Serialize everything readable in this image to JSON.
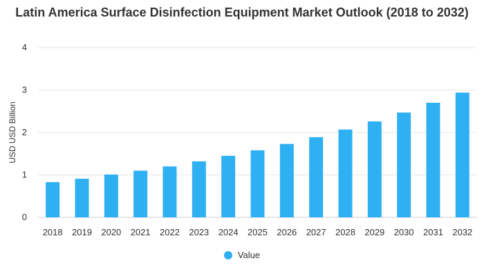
{
  "chart_data": {
    "type": "bar",
    "title": "Latin America Surface Disinfection Equipment Market Outlook (2018 to 2032)",
    "xlabel": "",
    "ylabel": "USD USD Billion",
    "ylim": [
      0,
      4
    ],
    "yticks": [
      "0",
      "1",
      "2",
      "3",
      "4"
    ],
    "categories": [
      "2018",
      "2019",
      "2020",
      "2021",
      "2022",
      "2023",
      "2024",
      "2025",
      "2026",
      "2027",
      "2028",
      "2029",
      "2030",
      "2031",
      "2032"
    ],
    "series": [
      {
        "name": "Value",
        "values": [
          0.83,
          0.91,
          1.01,
          1.1,
          1.2,
          1.32,
          1.45,
          1.58,
          1.73,
          1.89,
          2.07,
          2.26,
          2.47,
          2.7,
          2.94
        ]
      }
    ],
    "grid": true,
    "legend": "bottom-center",
    "color": "#2fb0f3"
  }
}
